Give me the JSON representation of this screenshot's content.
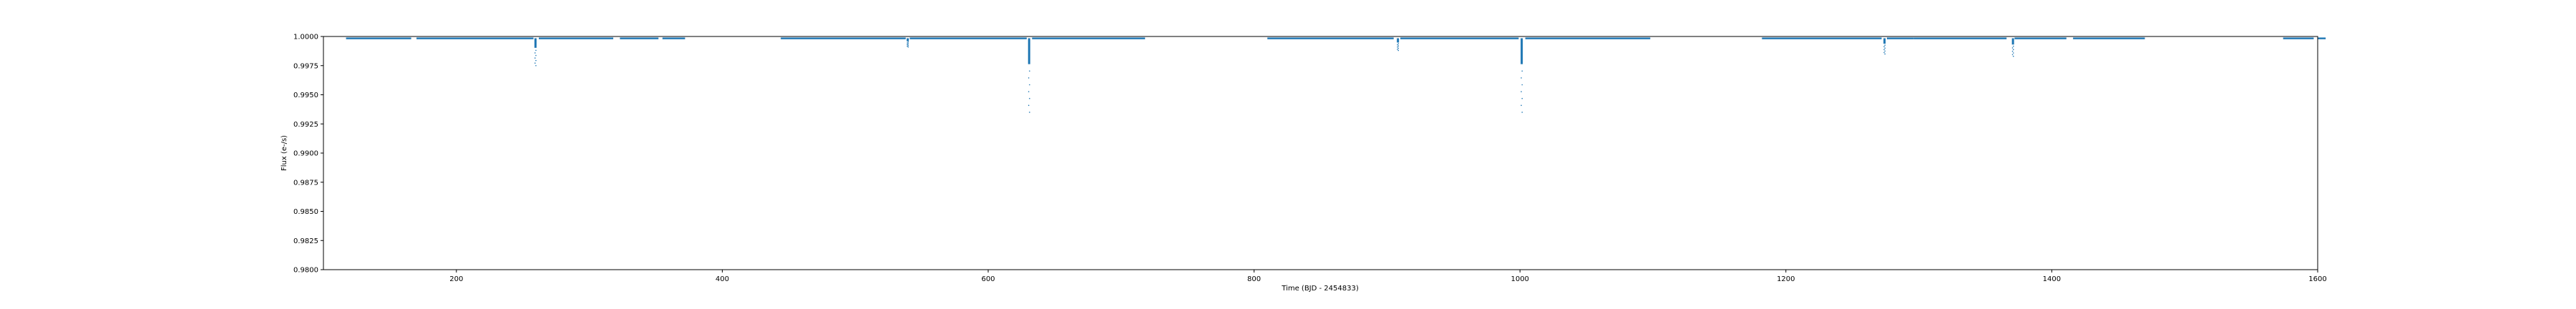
{
  "chart_data": {
    "type": "scatter",
    "title": "",
    "xlabel": "Time (BJD - 2454833)",
    "ylabel": "Flux (e-/s)",
    "xlim": [
      100,
      1600
    ],
    "ylim": [
      0.98,
      1.0
    ],
    "grid": false,
    "point_color": "#1f77b4",
    "x_ticks": [
      200,
      400,
      600,
      800,
      1000,
      1200,
      1400,
      1600
    ],
    "x_tick_labels": [
      "200",
      "400",
      "600",
      "800",
      "1000",
      "1200",
      "1400",
      "1600"
    ],
    "y_ticks": [
      0.98,
      0.9825,
      0.985,
      0.9875,
      0.99,
      0.9925,
      0.995,
      0.9975,
      1.0
    ],
    "y_tick_labels": [
      "0.9800",
      "0.9825",
      "0.9850",
      "0.9875",
      "0.9900",
      "0.9925",
      "0.9950",
      "0.9975",
      "1.0000"
    ],
    "baseline_flux": 0.99985,
    "observed_segments": [
      [
        117,
        166
      ],
      [
        170,
        258
      ],
      [
        262,
        318
      ],
      [
        323,
        352
      ],
      [
        355,
        372
      ],
      [
        444,
        538
      ],
      [
        541,
        629
      ],
      [
        633,
        718
      ],
      [
        810,
        905
      ],
      [
        910,
        999
      ],
      [
        1004,
        1098
      ],
      [
        1182,
        1272
      ],
      [
        1276,
        1296
      ],
      [
        1296,
        1366
      ],
      [
        1372,
        1411
      ],
      [
        1416,
        1470
      ],
      [
        1574,
        1597
      ],
      [
        1600,
        1606
      ]
    ],
    "transit_events": [
      {
        "x": 259.5,
        "min_flux": 0.9975
      },
      {
        "x": 539.5,
        "min_flux": 0.9991
      },
      {
        "x": 630.8,
        "min_flux": 0.9935
      },
      {
        "x": 908.2,
        "min_flux": 0.9988
      },
      {
        "x": 1001.3,
        "min_flux": 0.9935
      },
      {
        "x": 1274.2,
        "min_flux": 0.9985
      },
      {
        "x": 1370.8,
        "min_flux": 0.9983
      }
    ]
  }
}
